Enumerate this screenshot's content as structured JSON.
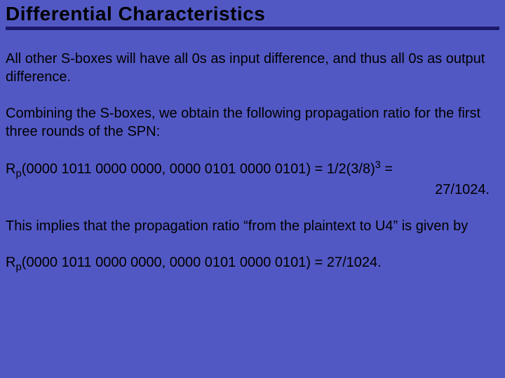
{
  "background_color": "#5258c3",
  "title_underline_color": "#1a1a6a",
  "text_color": "#000000",
  "font_family": "Comic Sans MS",
  "title": "Differential Characteristics",
  "para1": "All other S-boxes will have all 0s as input difference, and thus all 0s as output difference.",
  "para2": "Combining the S-boxes, we obtain the following propagation ratio for the first three rounds of the SPN:",
  "formula1": {
    "prefix": "R",
    "subscript": "p",
    "args_left": "(0000 1011 0000 0000, 0000 0101 0000 0101) = 1/2(3/8)",
    "exponent": "3",
    "tail": " =",
    "line2": "27/1024."
  },
  "para3": "This implies that the propagation ratio “from the plaintext to U4” is given by",
  "formula2": {
    "prefix": "R",
    "subscript": "p",
    "text": "(0000 1011 0000 0000, 0000 0101 0000 0101) = 27/1024."
  }
}
